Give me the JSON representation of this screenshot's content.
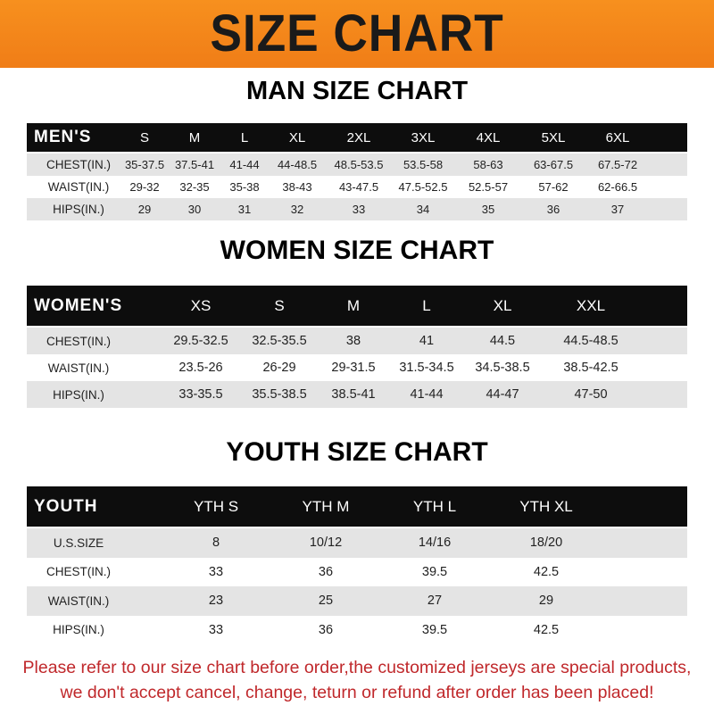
{
  "header": {
    "title": "SIZE CHART",
    "color": "#f58620"
  },
  "tables": [
    {
      "title": "MAN SIZE CHART",
      "head": [
        "MEN'S",
        "S",
        "M",
        "L",
        "XL",
        "2XL",
        "3XL",
        "4XL",
        "5XL",
        "6XL"
      ],
      "rows": [
        [
          "CHEST(IN.)",
          "35-37.5",
          "37.5-41",
          "41-44",
          "44-48.5",
          "48.5-53.5",
          "53.5-58",
          "58-63",
          "63-67.5",
          "67.5-72"
        ],
        [
          "WAIST(IN.)",
          "29-32",
          "32-35",
          "35-38",
          "38-43",
          "43-47.5",
          "47.5-52.5",
          "52.5-57",
          "57-62",
          "62-66.5"
        ],
        [
          "HIPS(IN.)",
          "29",
          "30",
          "31",
          "32",
          "33",
          "34",
          "35",
          "36",
          "37"
        ]
      ]
    },
    {
      "title": "WOMEN SIZE CHART",
      "head": [
        "WOMEN'S",
        "XS",
        "S",
        "M",
        "L",
        "XL",
        "XXL"
      ],
      "rows": [
        [
          "CHEST(IN.)",
          "29.5-32.5",
          "32.5-35.5",
          "38",
          "41",
          "44.5",
          "44.5-48.5"
        ],
        [
          "WAIST(IN.)",
          "23.5-26",
          "26-29",
          "29-31.5",
          "31.5-34.5",
          "34.5-38.5",
          "38.5-42.5"
        ],
        [
          "HIPS(IN.)",
          "33-35.5",
          "35.5-38.5",
          "38.5-41",
          "41-44",
          "44-47",
          "47-50"
        ]
      ]
    },
    {
      "title": "YOUTH SIZE CHART",
      "head": [
        "YOUTH",
        "YTH S",
        "YTH M",
        "YTH L",
        "YTH XL"
      ],
      "rows": [
        [
          "U.S.SIZE",
          "8",
          "10/12",
          "14/16",
          "18/20"
        ],
        [
          "CHEST(IN.)",
          "33",
          "36",
          "39.5",
          "42.5"
        ],
        [
          "WAIST(IN.)",
          "23",
          "25",
          "27",
          "29"
        ],
        [
          "HIPS(IN.)",
          "33",
          "36",
          "39.5",
          "42.5"
        ]
      ]
    }
  ],
  "footer": {
    "line1": "Please refer to our size chart before order,the customized jerseys are special products,",
    "line2": "we don't accept cancel, change, teturn or refund after order has been placed!",
    "color": "#c0282b"
  }
}
